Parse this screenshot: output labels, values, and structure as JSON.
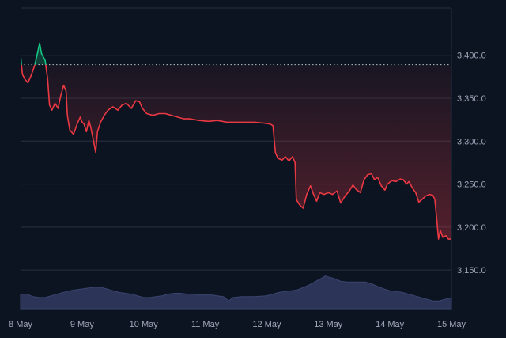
{
  "chart_data": {
    "type": "line",
    "title": "",
    "xlabel": "",
    "ylabel": "",
    "x_ticks": [
      "8 May",
      "9 May",
      "10 May",
      "11 May",
      "12 May",
      "13 May",
      "14 May",
      "15 May"
    ],
    "y_ticks": [
      "3,150.0",
      "3,200.0",
      "3,250.0",
      "3,300.0",
      "3,350.0",
      "3,400.0"
    ],
    "ylim": [
      3105,
      3455
    ],
    "xlim_days": [
      8.0,
      15.0
    ],
    "reference_value": 3389,
    "grid": "horizontal",
    "colors": {
      "background": "#0d1421",
      "above_reference": "#16c784",
      "below_reference": "#ea3943",
      "volume": "#2c3558",
      "grid": "#283042",
      "text": "#a1a7bb"
    },
    "series": [
      {
        "values": [
          [
            8.0,
            3400
          ],
          [
            8.03,
            3378
          ],
          [
            8.07,
            3372
          ],
          [
            8.12,
            3368
          ],
          [
            8.17,
            3376
          ],
          [
            8.23,
            3388
          ],
          [
            8.28,
            3404
          ],
          [
            8.31,
            3414
          ],
          [
            8.34,
            3402
          ],
          [
            8.37,
            3398
          ],
          [
            8.4,
            3394
          ],
          [
            8.44,
            3372
          ],
          [
            8.47,
            3342
          ],
          [
            8.51,
            3336
          ],
          [
            8.56,
            3344
          ],
          [
            8.61,
            3338
          ],
          [
            8.65,
            3352
          ],
          [
            8.7,
            3365
          ],
          [
            8.74,
            3358
          ],
          [
            8.76,
            3330
          ],
          [
            8.8,
            3313
          ],
          [
            8.86,
            3308
          ],
          [
            8.92,
            3320
          ],
          [
            8.97,
            3328
          ],
          [
            9.0,
            3322
          ],
          [
            9.03,
            3320
          ],
          [
            9.07,
            3311
          ],
          [
            9.11,
            3324
          ],
          [
            9.14,
            3316
          ],
          [
            9.18,
            3302
          ],
          [
            9.22,
            3287
          ],
          [
            9.25,
            3311
          ],
          [
            9.3,
            3322
          ],
          [
            9.36,
            3330
          ],
          [
            9.42,
            3336
          ],
          [
            9.5,
            3340
          ],
          [
            9.58,
            3336
          ],
          [
            9.65,
            3342
          ],
          [
            9.72,
            3344
          ],
          [
            9.8,
            3338
          ],
          [
            9.87,
            3347
          ],
          [
            9.93,
            3346
          ],
          [
            9.98,
            3338
          ],
          [
            10.05,
            3332
          ],
          [
            10.15,
            3330
          ],
          [
            10.25,
            3332
          ],
          [
            10.35,
            3332
          ],
          [
            10.45,
            3330
          ],
          [
            10.55,
            3328
          ],
          [
            10.65,
            3326
          ],
          [
            10.75,
            3326
          ],
          [
            10.9,
            3324
          ],
          [
            11.05,
            3323
          ],
          [
            11.2,
            3324
          ],
          [
            11.35,
            3322
          ],
          [
            11.5,
            3322
          ],
          [
            11.65,
            3322
          ],
          [
            11.8,
            3322
          ],
          [
            11.95,
            3321
          ],
          [
            12.05,
            3320
          ],
          [
            12.1,
            3318
          ],
          [
            12.14,
            3287
          ],
          [
            12.18,
            3280
          ],
          [
            12.25,
            3278
          ],
          [
            12.3,
            3282
          ],
          [
            12.36,
            3277
          ],
          [
            12.42,
            3282
          ],
          [
            12.46,
            3275
          ],
          [
            12.48,
            3232
          ],
          [
            12.53,
            3226
          ],
          [
            12.59,
            3222
          ],
          [
            12.65,
            3238
          ],
          [
            12.71,
            3248
          ],
          [
            12.76,
            3238
          ],
          [
            12.81,
            3230
          ],
          [
            12.86,
            3240
          ],
          [
            12.93,
            3238
          ],
          [
            13.0,
            3240
          ],
          [
            13.07,
            3238
          ],
          [
            13.14,
            3242
          ],
          [
            13.2,
            3228
          ],
          [
            13.27,
            3236
          ],
          [
            13.34,
            3242
          ],
          [
            13.4,
            3249
          ],
          [
            13.45,
            3244
          ],
          [
            13.52,
            3240
          ],
          [
            13.58,
            3255
          ],
          [
            13.64,
            3261
          ],
          [
            13.7,
            3262
          ],
          [
            13.75,
            3255
          ],
          [
            13.8,
            3258
          ],
          [
            13.86,
            3248
          ],
          [
            13.92,
            3243
          ],
          [
            13.96,
            3250
          ],
          [
            14.03,
            3254
          ],
          [
            14.1,
            3253
          ],
          [
            14.17,
            3256
          ],
          [
            14.22,
            3255
          ],
          [
            14.27,
            3250
          ],
          [
            14.31,
            3253
          ],
          [
            14.36,
            3246
          ],
          [
            14.42,
            3240
          ],
          [
            14.47,
            3229
          ],
          [
            14.52,
            3232
          ],
          [
            14.58,
            3236
          ],
          [
            14.64,
            3238
          ],
          [
            14.7,
            3237
          ],
          [
            14.73,
            3232
          ],
          [
            14.76,
            3210
          ],
          [
            14.79,
            3186
          ],
          [
            14.82,
            3196
          ],
          [
            14.86,
            3188
          ],
          [
            14.91,
            3190
          ],
          [
            14.95,
            3186
          ],
          [
            15.0,
            3186
          ]
        ]
      },
      {
        "type": "area",
        "values": [
          [
            8.0,
            3122
          ],
          [
            8.1,
            3122
          ],
          [
            8.2,
            3119
          ],
          [
            8.3,
            3118
          ],
          [
            8.4,
            3118
          ],
          [
            8.5,
            3120
          ],
          [
            8.6,
            3122
          ],
          [
            8.7,
            3124
          ],
          [
            8.8,
            3126
          ],
          [
            8.9,
            3127
          ],
          [
            9.0,
            3128
          ],
          [
            9.1,
            3129
          ],
          [
            9.2,
            3130
          ],
          [
            9.3,
            3130
          ],
          [
            9.4,
            3128
          ],
          [
            9.5,
            3126
          ],
          [
            9.6,
            3124
          ],
          [
            9.7,
            3123
          ],
          [
            9.8,
            3122
          ],
          [
            9.9,
            3120
          ],
          [
            10.0,
            3118
          ],
          [
            10.1,
            3118
          ],
          [
            10.2,
            3119
          ],
          [
            10.3,
            3120
          ],
          [
            10.4,
            3122
          ],
          [
            10.5,
            3123
          ],
          [
            10.6,
            3123
          ],
          [
            10.7,
            3122
          ],
          [
            10.8,
            3122
          ],
          [
            10.9,
            3121
          ],
          [
            11.0,
            3121
          ],
          [
            11.1,
            3121
          ],
          [
            11.2,
            3120
          ],
          [
            11.3,
            3119
          ],
          [
            11.38,
            3114
          ],
          [
            11.45,
            3118
          ],
          [
            11.6,
            3119
          ],
          [
            11.8,
            3119
          ],
          [
            12.0,
            3120
          ],
          [
            12.1,
            3122
          ],
          [
            12.2,
            3124
          ],
          [
            12.3,
            3125
          ],
          [
            12.4,
            3126
          ],
          [
            12.5,
            3127
          ],
          [
            12.6,
            3130
          ],
          [
            12.7,
            3133
          ],
          [
            12.8,
            3137
          ],
          [
            12.9,
            3141
          ],
          [
            12.95,
            3143
          ],
          [
            13.0,
            3142
          ],
          [
            13.1,
            3140
          ],
          [
            13.2,
            3137
          ],
          [
            13.3,
            3136
          ],
          [
            13.4,
            3136
          ],
          [
            13.5,
            3136
          ],
          [
            13.6,
            3136
          ],
          [
            13.7,
            3134
          ],
          [
            13.8,
            3131
          ],
          [
            13.9,
            3128
          ],
          [
            14.0,
            3126
          ],
          [
            14.1,
            3125
          ],
          [
            14.2,
            3124
          ],
          [
            14.3,
            3122
          ],
          [
            14.4,
            3120
          ],
          [
            14.5,
            3118
          ],
          [
            14.6,
            3116
          ],
          [
            14.7,
            3114
          ],
          [
            14.8,
            3114
          ],
          [
            14.9,
            3116
          ],
          [
            15.0,
            3118
          ]
        ]
      }
    ]
  }
}
